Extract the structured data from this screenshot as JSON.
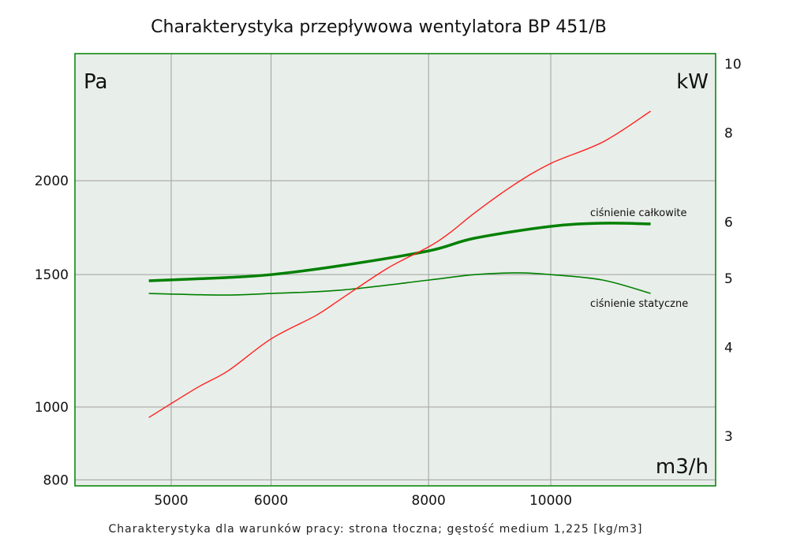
{
  "chart_data": {
    "type": "line",
    "title": "Charakterystyka przepływowa wentylatora BP 451/B",
    "footnote": "Charakterystyka dla warunków pracy: strona tłoczna; gęstość medium 1,225 [kg/m3]",
    "xlabel": "m3/h",
    "ylabel_left": "Pa",
    "ylabel_right": "kW",
    "x_scale": "log",
    "y_scale": "log",
    "x_ticks": [
      5000,
      6000,
      8000,
      10000
    ],
    "y_left_ticks": [
      800,
      1000,
      1500,
      2000
    ],
    "y_right_ticks": [
      3,
      4,
      5,
      6,
      8,
      10
    ],
    "grid": true,
    "colors": {
      "background": "#e8eee9",
      "frame": "#008000",
      "grid": "#a0a0a0",
      "pressure": "#008000",
      "power": "#ff2020"
    },
    "series": [
      {
        "name": "ciśnienie całkowite",
        "axis": "left",
        "x": [
          4800,
          5500,
          6000,
          6800,
          8000,
          8700,
          10000,
          11000,
          12000
        ],
        "y": [
          1472,
          1486,
          1500,
          1541,
          1613,
          1677,
          1739,
          1756,
          1752
        ]
      },
      {
        "name": "ciśnienie statyczne",
        "axis": "left",
        "x": [
          4800,
          5500,
          6000,
          6800,
          8000,
          8700,
          9400,
          10000,
          11000,
          12000
        ],
        "y": [
          1416,
          1409,
          1416,
          1430,
          1475,
          1500,
          1508,
          1500,
          1475,
          1416
        ]
      },
      {
        "axis": "right",
        "x": [
          4800,
          5240,
          5550,
          6000,
          6510,
          6800,
          7420,
          8000,
          8320,
          8700,
          9330,
          10000,
          11000,
          12000
        ],
        "y": [
          3.18,
          3.5,
          3.7,
          4.1,
          4.42,
          4.65,
          5.15,
          5.52,
          5.78,
          6.16,
          6.73,
          7.23,
          7.75,
          8.56
        ]
      }
    ]
  }
}
